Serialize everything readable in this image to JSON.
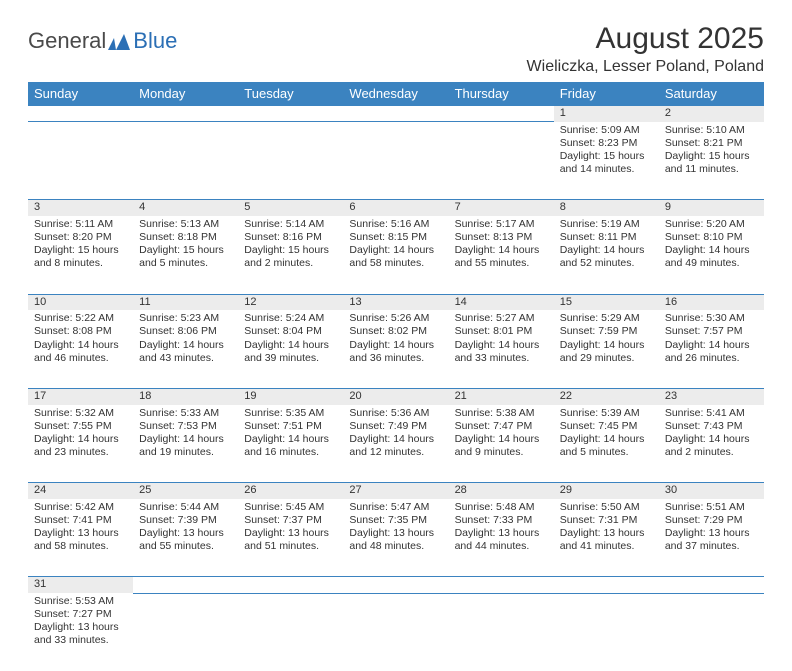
{
  "logo": {
    "part1": "General",
    "part2": "Blue"
  },
  "title": "August 2025",
  "location": "Wieliczka, Lesser Poland, Poland",
  "colors": {
    "header_bg": "#3b83c0",
    "header_text": "#ffffff",
    "daynum_bg": "#ececec",
    "row_divider": "#3b83c0",
    "text": "#333333",
    "logo_blue": "#2b6fb5"
  },
  "weekdays": [
    "Sunday",
    "Monday",
    "Tuesday",
    "Wednesday",
    "Thursday",
    "Friday",
    "Saturday"
  ],
  "weeks": [
    {
      "days": [
        {
          "n": "",
          "sunrise": "",
          "sunset": "",
          "daylight": ""
        },
        {
          "n": "",
          "sunrise": "",
          "sunset": "",
          "daylight": ""
        },
        {
          "n": "",
          "sunrise": "",
          "sunset": "",
          "daylight": ""
        },
        {
          "n": "",
          "sunrise": "",
          "sunset": "",
          "daylight": ""
        },
        {
          "n": "",
          "sunrise": "",
          "sunset": "",
          "daylight": ""
        },
        {
          "n": "1",
          "sunrise": "Sunrise: 5:09 AM",
          "sunset": "Sunset: 8:23 PM",
          "daylight": "Daylight: 15 hours and 14 minutes."
        },
        {
          "n": "2",
          "sunrise": "Sunrise: 5:10 AM",
          "sunset": "Sunset: 8:21 PM",
          "daylight": "Daylight: 15 hours and 11 minutes."
        }
      ]
    },
    {
      "days": [
        {
          "n": "3",
          "sunrise": "Sunrise: 5:11 AM",
          "sunset": "Sunset: 8:20 PM",
          "daylight": "Daylight: 15 hours and 8 minutes."
        },
        {
          "n": "4",
          "sunrise": "Sunrise: 5:13 AM",
          "sunset": "Sunset: 8:18 PM",
          "daylight": "Daylight: 15 hours and 5 minutes."
        },
        {
          "n": "5",
          "sunrise": "Sunrise: 5:14 AM",
          "sunset": "Sunset: 8:16 PM",
          "daylight": "Daylight: 15 hours and 2 minutes."
        },
        {
          "n": "6",
          "sunrise": "Sunrise: 5:16 AM",
          "sunset": "Sunset: 8:15 PM",
          "daylight": "Daylight: 14 hours and 58 minutes."
        },
        {
          "n": "7",
          "sunrise": "Sunrise: 5:17 AM",
          "sunset": "Sunset: 8:13 PM",
          "daylight": "Daylight: 14 hours and 55 minutes."
        },
        {
          "n": "8",
          "sunrise": "Sunrise: 5:19 AM",
          "sunset": "Sunset: 8:11 PM",
          "daylight": "Daylight: 14 hours and 52 minutes."
        },
        {
          "n": "9",
          "sunrise": "Sunrise: 5:20 AM",
          "sunset": "Sunset: 8:10 PM",
          "daylight": "Daylight: 14 hours and 49 minutes."
        }
      ]
    },
    {
      "days": [
        {
          "n": "10",
          "sunrise": "Sunrise: 5:22 AM",
          "sunset": "Sunset: 8:08 PM",
          "daylight": "Daylight: 14 hours and 46 minutes."
        },
        {
          "n": "11",
          "sunrise": "Sunrise: 5:23 AM",
          "sunset": "Sunset: 8:06 PM",
          "daylight": "Daylight: 14 hours and 43 minutes."
        },
        {
          "n": "12",
          "sunrise": "Sunrise: 5:24 AM",
          "sunset": "Sunset: 8:04 PM",
          "daylight": "Daylight: 14 hours and 39 minutes."
        },
        {
          "n": "13",
          "sunrise": "Sunrise: 5:26 AM",
          "sunset": "Sunset: 8:02 PM",
          "daylight": "Daylight: 14 hours and 36 minutes."
        },
        {
          "n": "14",
          "sunrise": "Sunrise: 5:27 AM",
          "sunset": "Sunset: 8:01 PM",
          "daylight": "Daylight: 14 hours and 33 minutes."
        },
        {
          "n": "15",
          "sunrise": "Sunrise: 5:29 AM",
          "sunset": "Sunset: 7:59 PM",
          "daylight": "Daylight: 14 hours and 29 minutes."
        },
        {
          "n": "16",
          "sunrise": "Sunrise: 5:30 AM",
          "sunset": "Sunset: 7:57 PM",
          "daylight": "Daylight: 14 hours and 26 minutes."
        }
      ]
    },
    {
      "days": [
        {
          "n": "17",
          "sunrise": "Sunrise: 5:32 AM",
          "sunset": "Sunset: 7:55 PM",
          "daylight": "Daylight: 14 hours and 23 minutes."
        },
        {
          "n": "18",
          "sunrise": "Sunrise: 5:33 AM",
          "sunset": "Sunset: 7:53 PM",
          "daylight": "Daylight: 14 hours and 19 minutes."
        },
        {
          "n": "19",
          "sunrise": "Sunrise: 5:35 AM",
          "sunset": "Sunset: 7:51 PM",
          "daylight": "Daylight: 14 hours and 16 minutes."
        },
        {
          "n": "20",
          "sunrise": "Sunrise: 5:36 AM",
          "sunset": "Sunset: 7:49 PM",
          "daylight": "Daylight: 14 hours and 12 minutes."
        },
        {
          "n": "21",
          "sunrise": "Sunrise: 5:38 AM",
          "sunset": "Sunset: 7:47 PM",
          "daylight": "Daylight: 14 hours and 9 minutes."
        },
        {
          "n": "22",
          "sunrise": "Sunrise: 5:39 AM",
          "sunset": "Sunset: 7:45 PM",
          "daylight": "Daylight: 14 hours and 5 minutes."
        },
        {
          "n": "23",
          "sunrise": "Sunrise: 5:41 AM",
          "sunset": "Sunset: 7:43 PM",
          "daylight": "Daylight: 14 hours and 2 minutes."
        }
      ]
    },
    {
      "days": [
        {
          "n": "24",
          "sunrise": "Sunrise: 5:42 AM",
          "sunset": "Sunset: 7:41 PM",
          "daylight": "Daylight: 13 hours and 58 minutes."
        },
        {
          "n": "25",
          "sunrise": "Sunrise: 5:44 AM",
          "sunset": "Sunset: 7:39 PM",
          "daylight": "Daylight: 13 hours and 55 minutes."
        },
        {
          "n": "26",
          "sunrise": "Sunrise: 5:45 AM",
          "sunset": "Sunset: 7:37 PM",
          "daylight": "Daylight: 13 hours and 51 minutes."
        },
        {
          "n": "27",
          "sunrise": "Sunrise: 5:47 AM",
          "sunset": "Sunset: 7:35 PM",
          "daylight": "Daylight: 13 hours and 48 minutes."
        },
        {
          "n": "28",
          "sunrise": "Sunrise: 5:48 AM",
          "sunset": "Sunset: 7:33 PM",
          "daylight": "Daylight: 13 hours and 44 minutes."
        },
        {
          "n": "29",
          "sunrise": "Sunrise: 5:50 AM",
          "sunset": "Sunset: 7:31 PM",
          "daylight": "Daylight: 13 hours and 41 minutes."
        },
        {
          "n": "30",
          "sunrise": "Sunrise: 5:51 AM",
          "sunset": "Sunset: 7:29 PM",
          "daylight": "Daylight: 13 hours and 37 minutes."
        }
      ]
    },
    {
      "days": [
        {
          "n": "31",
          "sunrise": "Sunrise: 5:53 AM",
          "sunset": "Sunset: 7:27 PM",
          "daylight": "Daylight: 13 hours and 33 minutes."
        },
        {
          "n": "",
          "sunrise": "",
          "sunset": "",
          "daylight": ""
        },
        {
          "n": "",
          "sunrise": "",
          "sunset": "",
          "daylight": ""
        },
        {
          "n": "",
          "sunrise": "",
          "sunset": "",
          "daylight": ""
        },
        {
          "n": "",
          "sunrise": "",
          "sunset": "",
          "daylight": ""
        },
        {
          "n": "",
          "sunrise": "",
          "sunset": "",
          "daylight": ""
        },
        {
          "n": "",
          "sunrise": "",
          "sunset": "",
          "daylight": ""
        }
      ]
    }
  ]
}
